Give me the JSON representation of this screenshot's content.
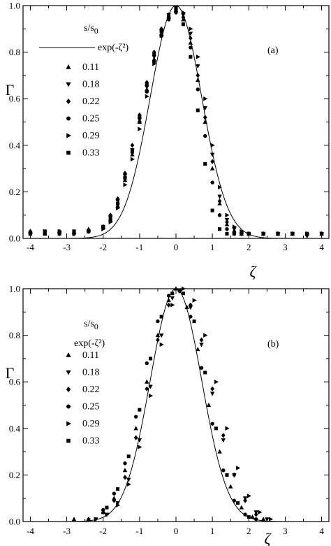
{
  "chart_data": [
    {
      "type": "scatter",
      "panel_label": "(a)",
      "xlabel": "ζ",
      "ylabel": "Γ",
      "xlim": [
        -4.2,
        4.2
      ],
      "ylim": [
        0,
        1.0
      ],
      "xticks": [
        -4,
        -3,
        -2,
        -1,
        0,
        1,
        2,
        3,
        4
      ],
      "yticks": [
        0.0,
        0.2,
        0.4,
        0.6,
        0.8,
        1.0
      ],
      "xtick_labels": [
        "-4",
        "-3",
        "-2",
        "-1",
        "0",
        "1",
        "2",
        "3",
        "4"
      ],
      "ytick_labels": [
        "0.0",
        "0.2",
        "0.4",
        "0.6",
        "0.8",
        "1.0"
      ],
      "legend": {
        "title": "s/s",
        "title_sub": "0",
        "placement": "upper-left",
        "line_label": "exp(-ζ²)",
        "entries": [
          "0.11",
          "0.18",
          "0.22",
          "0.25",
          "0.29",
          "0.33"
        ]
      },
      "curve": {
        "name": "exp(-ζ²)",
        "formula": "exp(-x^2)"
      },
      "series": [
        {
          "name": "0.11",
          "marker": "triangle-up",
          "x": [
            -4.0,
            -3.6,
            -3.2,
            -2.8,
            -2.4,
            -2.0,
            -1.8,
            -1.6,
            -1.4,
            -1.2,
            -1.0,
            -0.8,
            -0.6,
            -0.4,
            -0.2,
            0.0,
            0.2,
            0.4,
            0.6,
            0.8,
            1.0,
            1.2,
            1.4,
            1.6,
            1.8,
            2.0,
            2.4,
            2.8,
            3.2,
            3.6,
            4.0
          ],
          "y": [
            0.03,
            0.02,
            0.03,
            0.03,
            0.04,
            0.05,
            0.08,
            0.14,
            0.25,
            0.36,
            0.5,
            0.64,
            0.77,
            0.88,
            0.95,
            0.98,
            0.94,
            0.84,
            0.68,
            0.5,
            0.3,
            0.15,
            0.06,
            0.03,
            0.02,
            0.02,
            0.02,
            0.02,
            0.02,
            0.02,
            0.02
          ]
        },
        {
          "name": "0.18",
          "marker": "triangle-down",
          "x": [
            -4.0,
            -3.6,
            -3.2,
            -2.8,
            -2.4,
            -2.0,
            -1.8,
            -1.6,
            -1.4,
            -1.2,
            -1.0,
            -0.8,
            -0.6,
            -0.4,
            -0.2,
            0.0,
            0.2,
            0.4,
            0.6,
            0.8,
            1.0,
            1.2,
            1.4,
            1.6,
            1.8,
            2.0,
            2.4,
            2.8,
            3.2,
            3.6,
            4.0
          ],
          "y": [
            0.02,
            0.03,
            0.02,
            0.03,
            0.03,
            0.05,
            0.09,
            0.16,
            0.27,
            0.38,
            0.51,
            0.65,
            0.78,
            0.89,
            0.96,
            0.99,
            0.96,
            0.88,
            0.74,
            0.56,
            0.36,
            0.18,
            0.08,
            0.04,
            0.02,
            0.02,
            0.02,
            0.02,
            0.02,
            0.01,
            0.02
          ]
        },
        {
          "name": "0.22",
          "marker": "diamond",
          "x": [
            -4.0,
            -3.6,
            -3.2,
            -2.8,
            -2.4,
            -2.0,
            -1.8,
            -1.6,
            -1.4,
            -1.2,
            -1.0,
            -0.8,
            -0.6,
            -0.4,
            -0.2,
            0.0,
            0.2,
            0.4,
            0.6,
            0.8,
            1.0,
            1.2,
            1.4,
            1.6,
            1.8,
            2.0,
            2.4,
            2.8,
            3.2,
            3.6,
            4.0
          ],
          "y": [
            0.03,
            0.03,
            0.02,
            0.02,
            0.03,
            0.05,
            0.1,
            0.17,
            0.28,
            0.4,
            0.53,
            0.67,
            0.8,
            0.9,
            0.96,
            0.98,
            0.95,
            0.86,
            0.7,
            0.52,
            0.33,
            0.16,
            0.07,
            0.03,
            0.02,
            0.02,
            0.02,
            0.02,
            0.02,
            0.02,
            0.02
          ]
        },
        {
          "name": "0.25",
          "marker": "circle",
          "x": [
            -4.0,
            -3.6,
            -3.2,
            -2.8,
            -2.4,
            -2.0,
            -1.8,
            -1.6,
            -1.4,
            -1.2,
            -1.0,
            -0.8,
            -0.6,
            -0.4,
            -0.2,
            0.0,
            0.2,
            0.4,
            0.6,
            0.8,
            1.0,
            1.2,
            1.4,
            1.6,
            1.8,
            2.0,
            2.4,
            2.8,
            3.2,
            3.6,
            4.0
          ],
          "y": [
            0.02,
            0.02,
            0.03,
            0.02,
            0.03,
            0.05,
            0.08,
            0.15,
            0.26,
            0.37,
            0.5,
            0.63,
            0.76,
            0.87,
            0.94,
            0.97,
            0.92,
            0.82,
            0.64,
            0.44,
            0.24,
            0.1,
            0.04,
            0.02,
            0.02,
            0.02,
            0.02,
            0.02,
            0.02,
            0.02,
            0.02
          ]
        },
        {
          "name": "0.29",
          "marker": "triangle-right",
          "x": [
            -4.0,
            -3.6,
            -3.2,
            -2.8,
            -2.4,
            -2.0,
            -1.8,
            -1.6,
            -1.4,
            -1.2,
            -1.0,
            -0.8,
            -0.6,
            -0.4,
            -0.2,
            0.0,
            0.2,
            0.4,
            0.6,
            0.8,
            1.0,
            1.2,
            1.4,
            1.6,
            1.8,
            2.0,
            2.4,
            2.8,
            3.2,
            3.6,
            4.0
          ],
          "y": [
            0.02,
            0.03,
            0.03,
            0.02,
            0.03,
            0.04,
            0.07,
            0.13,
            0.23,
            0.34,
            0.47,
            0.61,
            0.75,
            0.87,
            0.95,
            0.99,
            0.97,
            0.9,
            0.78,
            0.6,
            0.4,
            0.22,
            0.1,
            0.05,
            0.03,
            0.02,
            0.02,
            0.02,
            0.02,
            0.02,
            0.02
          ]
        },
        {
          "name": "0.33",
          "marker": "square",
          "x": [
            -4.0,
            -3.6,
            -3.2,
            -2.8,
            -2.4,
            -2.0,
            -1.8,
            -1.6,
            -1.4,
            -1.2,
            -1.0,
            -0.8,
            -0.6,
            -0.4,
            -0.2,
            0.0,
            0.2,
            0.4,
            0.6,
            0.8,
            1.0,
            1.2,
            1.4,
            1.6,
            1.8,
            2.0,
            2.4,
            2.8,
            3.2,
            3.6,
            4.0
          ],
          "y": [
            0.02,
            0.02,
            0.02,
            0.03,
            0.03,
            0.05,
            0.09,
            0.15,
            0.26,
            0.38,
            0.52,
            0.66,
            0.79,
            0.89,
            0.95,
            0.98,
            0.92,
            0.78,
            0.55,
            0.32,
            0.12,
            0.04,
            0.02,
            0.02,
            0.02,
            0.02,
            0.02,
            0.02,
            0.02,
            0.02,
            0.02
          ]
        }
      ]
    },
    {
      "type": "scatter",
      "panel_label": "(b)",
      "xlabel": "ζ",
      "ylabel": "Γ",
      "xlim": [
        -4.2,
        4.2
      ],
      "ylim": [
        0,
        1.0
      ],
      "xticks": [
        -4,
        -3,
        -2,
        -1,
        0,
        1,
        2,
        3,
        4
      ],
      "yticks": [
        0.0,
        0.2,
        0.4,
        0.6,
        0.8,
        1.0
      ],
      "xtick_labels": [
        "-4",
        "-3",
        "-2",
        "-1",
        "0",
        "1",
        "2",
        "3",
        "4"
      ],
      "ytick_labels": [
        "0.0",
        "0.2",
        "0.4",
        "0.6",
        "0.8",
        "1.0"
      ],
      "legend": {
        "title": "s/s",
        "title_sub": "0",
        "placement": "upper-left",
        "line_label": "exp(-ζ²)",
        "entries": [
          "0.11",
          "0.18",
          "0.22",
          "0.25",
          "0.29",
          "0.33"
        ]
      },
      "curve": {
        "name": "exp(-ζ²)",
        "formula": "exp(-x^2)"
      },
      "series": [
        {
          "name": "0.11",
          "marker": "triangle-up",
          "x": [
            -2.8,
            -2.4,
            -2.0,
            -1.7,
            -1.4,
            -1.1,
            -0.8,
            -0.5,
            -0.2,
            0.0,
            0.3,
            0.6,
            0.9,
            1.2,
            1.5,
            1.8,
            2.1,
            2.4
          ],
          "y": [
            0.01,
            0.01,
            0.04,
            0.1,
            0.22,
            0.4,
            0.6,
            0.8,
            0.95,
            1.0,
            0.92,
            0.74,
            0.5,
            0.3,
            0.15,
            0.06,
            0.02,
            0.01
          ]
        },
        {
          "name": "0.18",
          "marker": "triangle-down",
          "x": [
            -2.2,
            -1.9,
            -1.6,
            -1.3,
            -1.0,
            -0.7,
            -0.4,
            -0.1,
            0.1,
            0.4,
            0.7,
            1.0,
            1.3,
            1.6,
            1.9,
            2.2,
            2.5
          ],
          "y": [
            0.01,
            0.03,
            0.08,
            0.18,
            0.35,
            0.58,
            0.8,
            0.96,
            0.99,
            0.92,
            0.76,
            0.55,
            0.35,
            0.2,
            0.1,
            0.04,
            0.01
          ]
        },
        {
          "name": "0.22",
          "marker": "diamond",
          "x": [
            -2.4,
            -2.0,
            -1.7,
            -1.4,
            -1.1,
            -0.8,
            -0.5,
            -0.2,
            0.1,
            0.4,
            0.7,
            1.0,
            1.3,
            1.6,
            1.9,
            2.2
          ],
          "y": [
            0.01,
            0.04,
            0.09,
            0.19,
            0.36,
            0.57,
            0.78,
            0.93,
            0.99,
            0.93,
            0.78,
            0.57,
            0.37,
            0.2,
            0.09,
            0.03
          ]
        },
        {
          "name": "0.25",
          "marker": "circle",
          "x": [
            -2.0,
            -1.7,
            -1.4,
            -1.1,
            -0.8,
            -0.5,
            -0.2,
            0.1,
            0.4,
            0.7,
            1.0,
            1.3,
            1.6,
            1.9,
            2.2
          ],
          "y": [
            0.05,
            0.12,
            0.25,
            0.45,
            0.68,
            0.86,
            0.97,
            0.99,
            0.88,
            0.66,
            0.42,
            0.22,
            0.09,
            0.03,
            0.01
          ]
        },
        {
          "name": "0.29",
          "marker": "triangle-right",
          "x": [
            -2.2,
            -1.9,
            -1.6,
            -1.3,
            -1.0,
            -0.7,
            -0.4,
            -0.1,
            0.2,
            0.5,
            0.8,
            1.1,
            1.4,
            1.7,
            2.0,
            2.3,
            2.6
          ],
          "y": [
            0.01,
            0.03,
            0.07,
            0.16,
            0.32,
            0.54,
            0.76,
            0.93,
            1.0,
            0.95,
            0.8,
            0.6,
            0.4,
            0.23,
            0.11,
            0.04,
            0.01
          ]
        },
        {
          "name": "0.33",
          "marker": "square",
          "x": [
            -1.9,
            -1.6,
            -1.3,
            -1.0,
            -0.7,
            -0.4,
            -0.1,
            0.2,
            0.5,
            0.8,
            1.1,
            1.4,
            1.7,
            2.0
          ],
          "y": [
            0.06,
            0.14,
            0.28,
            0.48,
            0.7,
            0.88,
            0.98,
            0.98,
            0.86,
            0.64,
            0.4,
            0.2,
            0.08,
            0.02
          ]
        }
      ]
    }
  ]
}
